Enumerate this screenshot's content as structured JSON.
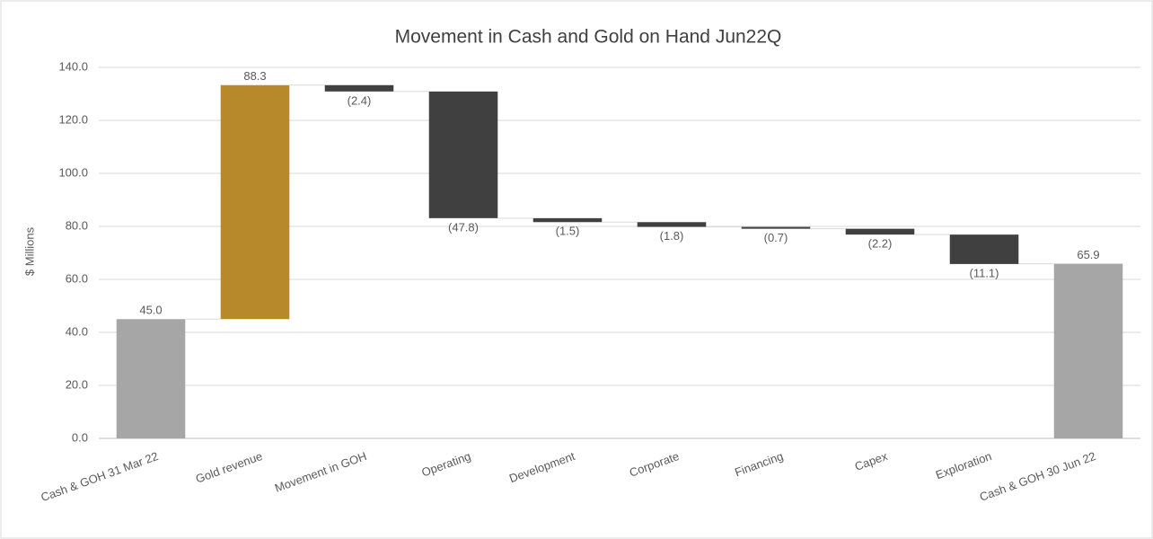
{
  "chart_data": {
    "type": "waterfall",
    "title": "Movement in Cash and Gold on Hand Jun22Q",
    "ylabel": "$ Millions",
    "categories": [
      "Cash & GOH 31 Mar 22",
      "Gold revenue",
      "Movement in GOH",
      "Operating",
      "Development",
      "Corporate",
      "Financing",
      "Capex",
      "Exploration",
      "Cash & GOH 30 Jun 22"
    ],
    "values": [
      45.0,
      88.3,
      -2.4,
      -47.8,
      -1.5,
      -1.8,
      -0.7,
      -2.2,
      -11.1,
      65.9
    ],
    "value_labels": [
      "45.0",
      "88.3",
      "(2.4)",
      "(47.8)",
      "(1.5)",
      "(1.8)",
      "(0.7)",
      "(2.2)",
      "(11.1)",
      "65.9"
    ],
    "colors": [
      "#a6a6a6",
      "#b8892b",
      "#404040",
      "#404040",
      "#404040",
      "#404040",
      "#404040",
      "#404040",
      "#404040",
      "#a6a6a6"
    ],
    "ylim": [
      0,
      140
    ],
    "yticks": [
      {
        "value": 0,
        "label": "0.0"
      },
      {
        "value": 20,
        "label": "20.0"
      },
      {
        "value": 40,
        "label": "40.0"
      },
      {
        "value": 60,
        "label": "60.0"
      },
      {
        "value": 80,
        "label": "80.0"
      },
      {
        "value": 100,
        "label": "100.0"
      },
      {
        "value": 120,
        "label": "120.0"
      },
      {
        "value": 140,
        "label": "140.0"
      }
    ],
    "grid": true
  }
}
